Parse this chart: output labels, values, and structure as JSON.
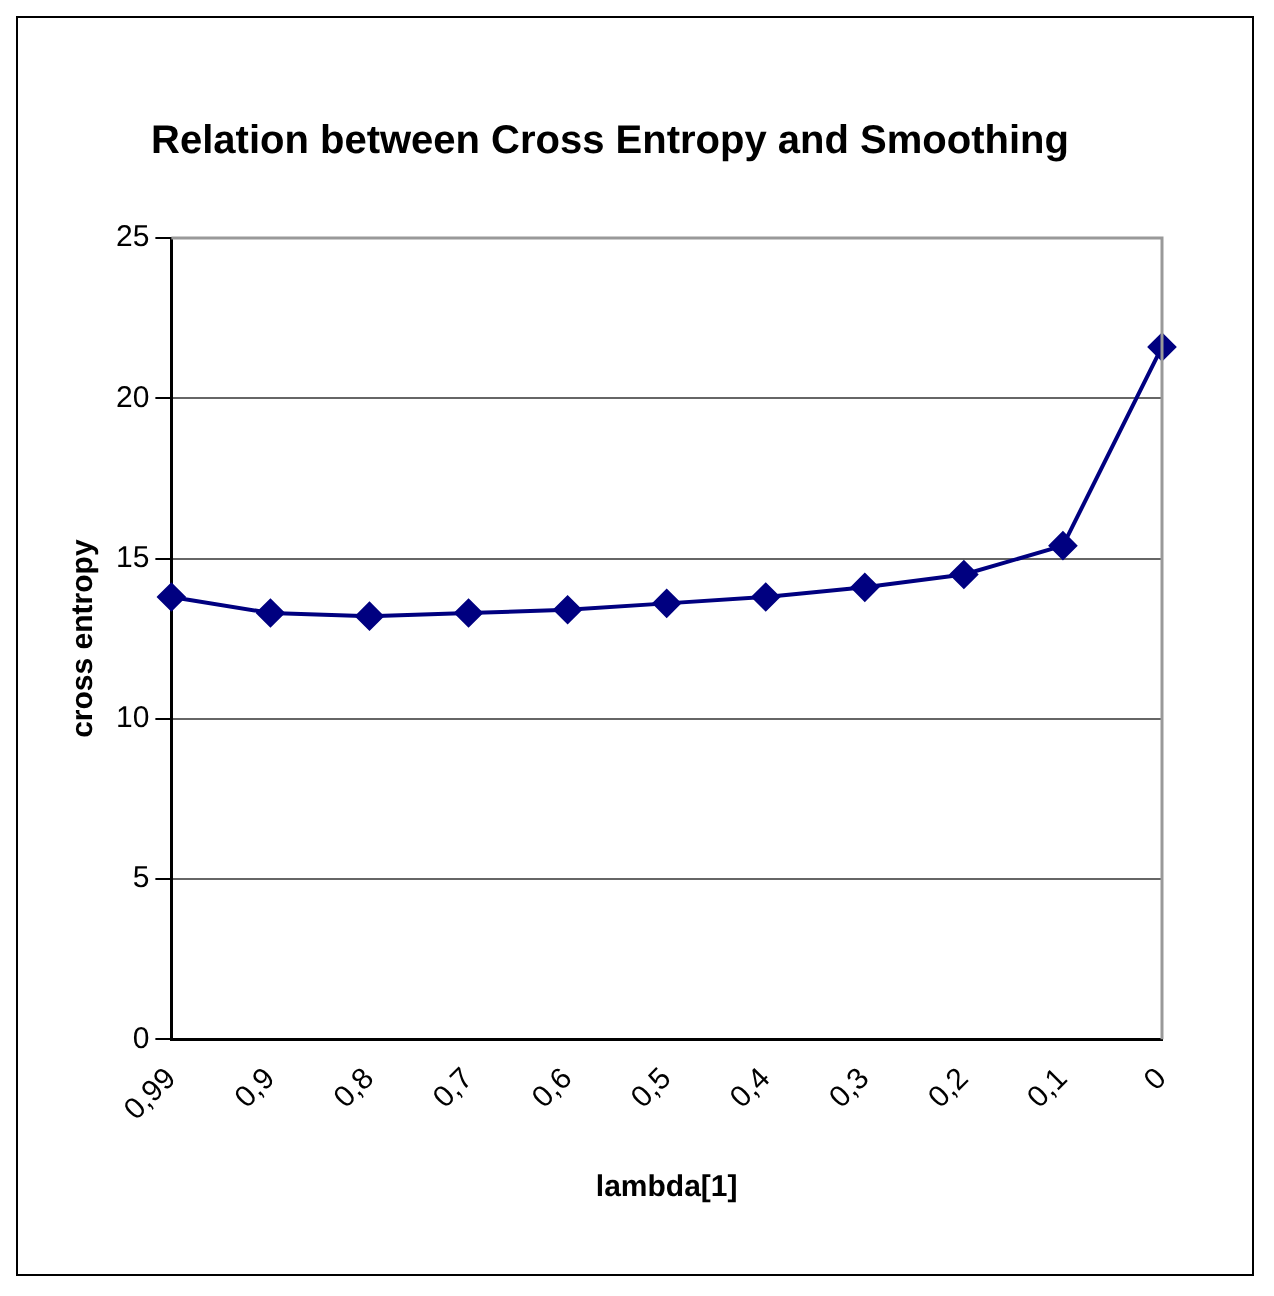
{
  "chart_data": {
    "type": "line",
    "title": "Relation between Cross Entropy and Smoothing",
    "xlabel": "lambda[1]",
    "ylabel": "cross entropy",
    "categories": [
      "0,99",
      "0,9",
      "0,8",
      "0,7",
      "0,6",
      "0,5",
      "0,4",
      "0,3",
      "0,2",
      "0,1",
      "0"
    ],
    "series": [
      {
        "color": "#000080",
        "values": [
          13.8,
          13.3,
          13.2,
          13.3,
          13.4,
          13.6,
          13.8,
          14.1,
          14.5,
          15.4,
          21.6
        ]
      }
    ],
    "ylim": [
      0,
      25
    ],
    "yticks": [
      0,
      5,
      10,
      15,
      20,
      25
    ],
    "grid": "y",
    "legend": false,
    "marker": "diamond",
    "line_style": "solid"
  }
}
